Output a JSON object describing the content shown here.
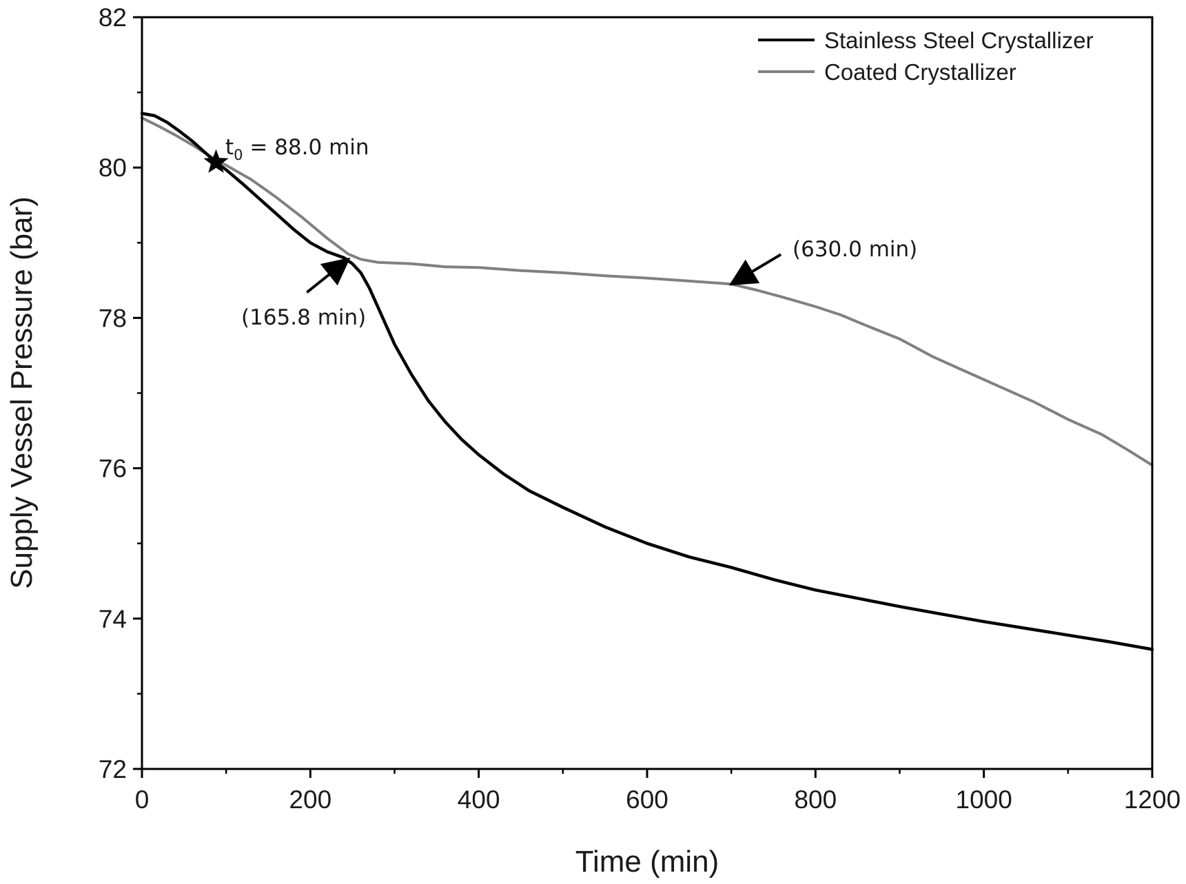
{
  "chart_data": {
    "type": "line",
    "title": "",
    "xlabel": "Time (min)",
    "ylabel": "Supply Vessel Pressure (bar)",
    "xlim": [
      0,
      1200
    ],
    "ylim": [
      72,
      82
    ],
    "x_major_ticks": [
      0,
      200,
      400,
      600,
      800,
      1000,
      1200
    ],
    "x_minor_ticks": [
      100,
      300,
      500,
      700,
      900,
      1100
    ],
    "y_major_ticks": [
      72,
      74,
      76,
      78,
      80,
      82
    ],
    "y_minor_ticks": [
      73,
      75,
      77,
      79,
      81
    ],
    "grid": false,
    "legend_position": "top-right",
    "series": [
      {
        "name": "Stainless Steel Crystallizer",
        "color": "#000000",
        "x": [
          0,
          15,
          30,
          45,
          60,
          75,
          88,
          100,
          120,
          140,
          160,
          180,
          200,
          220,
          240,
          250,
          260,
          270,
          280,
          290,
          300,
          320,
          340,
          360,
          380,
          400,
          430,
          460,
          500,
          550,
          600,
          650,
          700,
          750,
          800,
          850,
          900,
          950,
          1000,
          1050,
          1100,
          1150,
          1200
        ],
        "y": [
          80.72,
          80.69,
          80.6,
          80.48,
          80.35,
          80.2,
          80.07,
          79.97,
          79.78,
          79.58,
          79.38,
          79.18,
          79.0,
          78.88,
          78.8,
          78.72,
          78.6,
          78.4,
          78.15,
          77.9,
          77.65,
          77.25,
          76.9,
          76.62,
          76.38,
          76.18,
          75.92,
          75.7,
          75.48,
          75.22,
          75.0,
          74.82,
          74.68,
          74.52,
          74.38,
          74.27,
          74.16,
          74.06,
          73.96,
          73.87,
          73.78,
          73.69,
          73.59
        ]
      },
      {
        "name": "Coated Crystallizer",
        "color": "#808080",
        "x": [
          0,
          20,
          40,
          60,
          88,
          100,
          130,
          160,
          190,
          220,
          245,
          260,
          280,
          320,
          360,
          400,
          450,
          500,
          550,
          600,
          650,
          700,
          730,
          760,
          800,
          830,
          860,
          900,
          940,
          980,
          1020,
          1060,
          1100,
          1140,
          1170,
          1200
        ],
        "y": [
          80.66,
          80.55,
          80.43,
          80.3,
          80.1,
          80.03,
          79.84,
          79.6,
          79.34,
          79.06,
          78.85,
          78.78,
          78.74,
          78.72,
          78.68,
          78.67,
          78.63,
          78.6,
          78.56,
          78.53,
          78.49,
          78.45,
          78.37,
          78.28,
          78.15,
          78.04,
          77.9,
          77.72,
          77.48,
          77.28,
          77.08,
          76.88,
          76.65,
          76.45,
          76.25,
          76.04
        ]
      }
    ],
    "annotations": [
      {
        "kind": "star",
        "x": 88.0,
        "y": 80.07,
        "label_main": "t",
        "label_sub": "0",
        "label_rest": " = 88.0 min"
      },
      {
        "kind": "arrow",
        "x": 245,
        "y": 78.78,
        "label": "(165.8 min)"
      },
      {
        "kind": "arrow",
        "x": 700,
        "y": 78.45,
        "label": "(630.0 min)"
      }
    ]
  }
}
